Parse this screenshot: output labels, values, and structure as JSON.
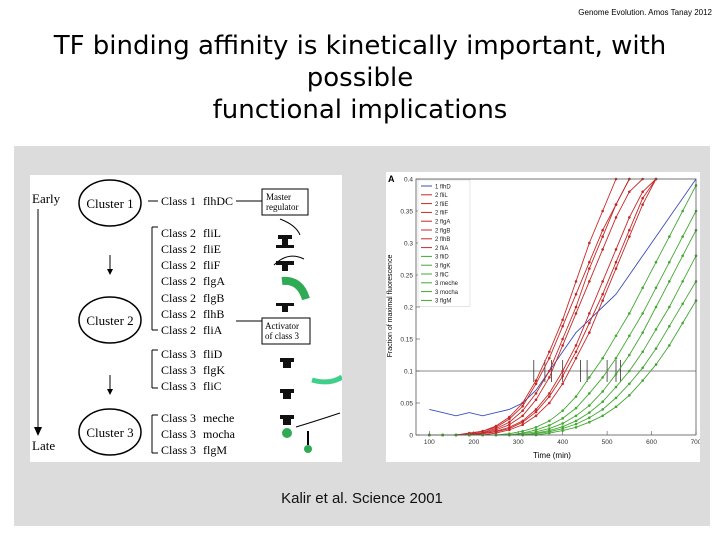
{
  "header_note": "Genome Evolution. Amos Tanay 2012",
  "title_line1": "TF binding affinity is kinetically important, with possible",
  "title_line2": "functional implications",
  "caption": "Kalir et al. Science 2001",
  "diagram": {
    "early": "Early",
    "late": "Late",
    "clusters": [
      "Cluster 1",
      "Cluster 2",
      "Cluster 3"
    ],
    "classes": [
      {
        "cls": "Class 1",
        "gene": "flhDC"
      },
      {
        "cls": "Class 2",
        "gene": "fliL"
      },
      {
        "cls": "Class 2",
        "gene": "fliE"
      },
      {
        "cls": "Class 2",
        "gene": "fliF"
      },
      {
        "cls": "Class 2",
        "gene": "flgA"
      },
      {
        "cls": "Class 2",
        "gene": "flgB"
      },
      {
        "cls": "Class 2",
        "gene": "flhB"
      },
      {
        "cls": "Class 2",
        "gene": "fliA"
      },
      {
        "cls": "Class 3",
        "gene": "fliD"
      },
      {
        "cls": "Class 3",
        "gene": "flgK"
      },
      {
        "cls": "Class 3",
        "gene": "fliC"
      },
      {
        "cls": "Class 3",
        "gene": "meche"
      },
      {
        "cls": "Class 3",
        "gene": "mocha"
      },
      {
        "cls": "Class 3",
        "gene": "flgM"
      }
    ],
    "master_regulator_1": "Master",
    "master_regulator_2": "regulator",
    "activator_1": "Activator",
    "activator_2": "of class 3"
  },
  "chart_data": {
    "type": "line",
    "panel_label": "A",
    "title": "",
    "xlabel": "Time (min)",
    "ylabel": "Fraction of maximal fluorescence",
    "xlim": [
      70,
      700
    ],
    "ylim": [
      0,
      0.4
    ],
    "x_ticks": [
      100,
      200,
      300,
      400,
      500,
      600,
      700
    ],
    "y_ticks": [
      0,
      0.05,
      0.1,
      0.15,
      0.2,
      0.25,
      0.3,
      0.35,
      0.4
    ],
    "threshold": 0.1,
    "threshold_crossings": [
      335,
      360,
      375,
      400,
      440,
      455,
      500,
      520,
      530
    ],
    "legend": [
      "1 flhD",
      "2 fliL",
      "2 fliE",
      "2 fliF",
      "2 flgA",
      "2 flgB",
      "2 flhB",
      "2 fliA",
      "3 fliD",
      "3 flgK",
      "3 fliC",
      "3 meche",
      "3 mocha",
      "3 flgM"
    ],
    "x": [
      100,
      130,
      160,
      190,
      220,
      250,
      280,
      310,
      340,
      370,
      400,
      430,
      460,
      490,
      520,
      550,
      580,
      610,
      640,
      670,
      700
    ],
    "series": [
      {
        "name": "1 flhD",
        "color": "#3b4fb8",
        "values": [
          0.04,
          0.035,
          0.03,
          0.035,
          0.03,
          0.035,
          0.04,
          0.05,
          0.07,
          0.1,
          0.13,
          0.16,
          0.18,
          0.2,
          0.22,
          0.25,
          0.28,
          0.31,
          0.34,
          0.37,
          0.4
        ]
      },
      {
        "name": "2 fliL",
        "color": "#c62828",
        "values": [
          0.0,
          0.0,
          0.0,
          0.003,
          0.006,
          0.012,
          0.025,
          0.045,
          0.08,
          0.12,
          0.17,
          0.22,
          0.27,
          0.32,
          0.36,
          0.4,
          null,
          null,
          null,
          null,
          null
        ]
      },
      {
        "name": "2 fliE",
        "color": "#c62828",
        "values": [
          0.0,
          0.0,
          0.0,
          0.0,
          0.003,
          0.008,
          0.016,
          0.03,
          0.055,
          0.09,
          0.14,
          0.19,
          0.24,
          0.29,
          0.34,
          0.38,
          0.4,
          null,
          null,
          null,
          null
        ]
      },
      {
        "name": "2 fliF",
        "color": "#c62828",
        "values": [
          0.0,
          0.0,
          0.0,
          0.002,
          0.006,
          0.014,
          0.028,
          0.05,
          0.085,
          0.13,
          0.18,
          0.24,
          0.3,
          0.35,
          0.4,
          null,
          null,
          null,
          null,
          null,
          null
        ]
      },
      {
        "name": "2 flgA",
        "color": "#c62828",
        "values": [
          0.0,
          0.0,
          0.0,
          0.0,
          0.002,
          0.006,
          0.012,
          0.022,
          0.04,
          0.065,
          0.1,
          0.14,
          0.19,
          0.24,
          0.29,
          0.34,
          0.38,
          0.4,
          null,
          null,
          null
        ]
      },
      {
        "name": "2 flgB",
        "color": "#c62828",
        "values": [
          0.0,
          0.0,
          0.0,
          0.0,
          0.0,
          0.003,
          0.008,
          0.016,
          0.03,
          0.05,
          0.08,
          0.12,
          0.16,
          0.21,
          0.26,
          0.31,
          0.36,
          0.4,
          null,
          null,
          null
        ]
      },
      {
        "name": "2 flhB",
        "color": "#c62828",
        "values": [
          0.0,
          0.0,
          0.0,
          0.001,
          0.004,
          0.01,
          0.02,
          0.038,
          0.065,
          0.1,
          0.15,
          0.2,
          0.26,
          0.31,
          0.36,
          0.4,
          null,
          null,
          null,
          null,
          null
        ]
      },
      {
        "name": "2 fliA",
        "color": "#c62828",
        "values": [
          0.0,
          0.0,
          0.0,
          0.0,
          0.002,
          0.005,
          0.01,
          0.02,
          0.036,
          0.06,
          0.092,
          0.13,
          0.175,
          0.22,
          0.27,
          0.32,
          0.37,
          0.4,
          null,
          null,
          null
        ]
      },
      {
        "name": "3 fliD",
        "color": "#43a832",
        "values": [
          0.0,
          0.0,
          0.0,
          0.0,
          0.0,
          0.0,
          0.002,
          0.006,
          0.012,
          0.022,
          0.038,
          0.06,
          0.09,
          0.12,
          0.155,
          0.19,
          0.23,
          0.27,
          0.31,
          0.35,
          0.39
        ]
      },
      {
        "name": "3 flgK",
        "color": "#43a832",
        "values": [
          0.0,
          0.0,
          0.0,
          0.0,
          0.0,
          0.0,
          0.0,
          0.003,
          0.008,
          0.015,
          0.026,
          0.042,
          0.065,
          0.09,
          0.12,
          0.155,
          0.19,
          0.23,
          0.27,
          0.31,
          0.35
        ]
      },
      {
        "name": "3 fliC",
        "color": "#43a832",
        "values": [
          0.0,
          0.0,
          0.0,
          0.0,
          0.0,
          0.0,
          0.0,
          0.002,
          0.005,
          0.01,
          0.018,
          0.03,
          0.046,
          0.068,
          0.095,
          0.125,
          0.16,
          0.2,
          0.24,
          0.28,
          0.32
        ]
      },
      {
        "name": "3 meche",
        "color": "#43a832",
        "values": [
          0.0,
          0.0,
          0.0,
          0.0,
          0.0,
          0.0,
          0.0,
          0.0,
          0.003,
          0.007,
          0.013,
          0.022,
          0.035,
          0.052,
          0.075,
          0.1,
          0.13,
          0.165,
          0.2,
          0.24,
          0.28
        ]
      },
      {
        "name": "3 mocha",
        "color": "#43a832",
        "values": [
          0.0,
          0.0,
          0.0,
          0.0,
          0.0,
          0.0,
          0.0,
          0.0,
          0.002,
          0.005,
          0.01,
          0.017,
          0.027,
          0.04,
          0.058,
          0.08,
          0.105,
          0.135,
          0.17,
          0.205,
          0.24
        ]
      },
      {
        "name": "3 flgM",
        "color": "#43a832",
        "values": [
          0.0,
          0.0,
          0.0,
          0.0,
          0.0,
          0.0,
          0.0,
          0.0,
          0.0,
          0.003,
          0.007,
          0.012,
          0.02,
          0.03,
          0.044,
          0.062,
          0.085,
          0.11,
          0.14,
          0.175,
          0.21
        ]
      }
    ]
  }
}
